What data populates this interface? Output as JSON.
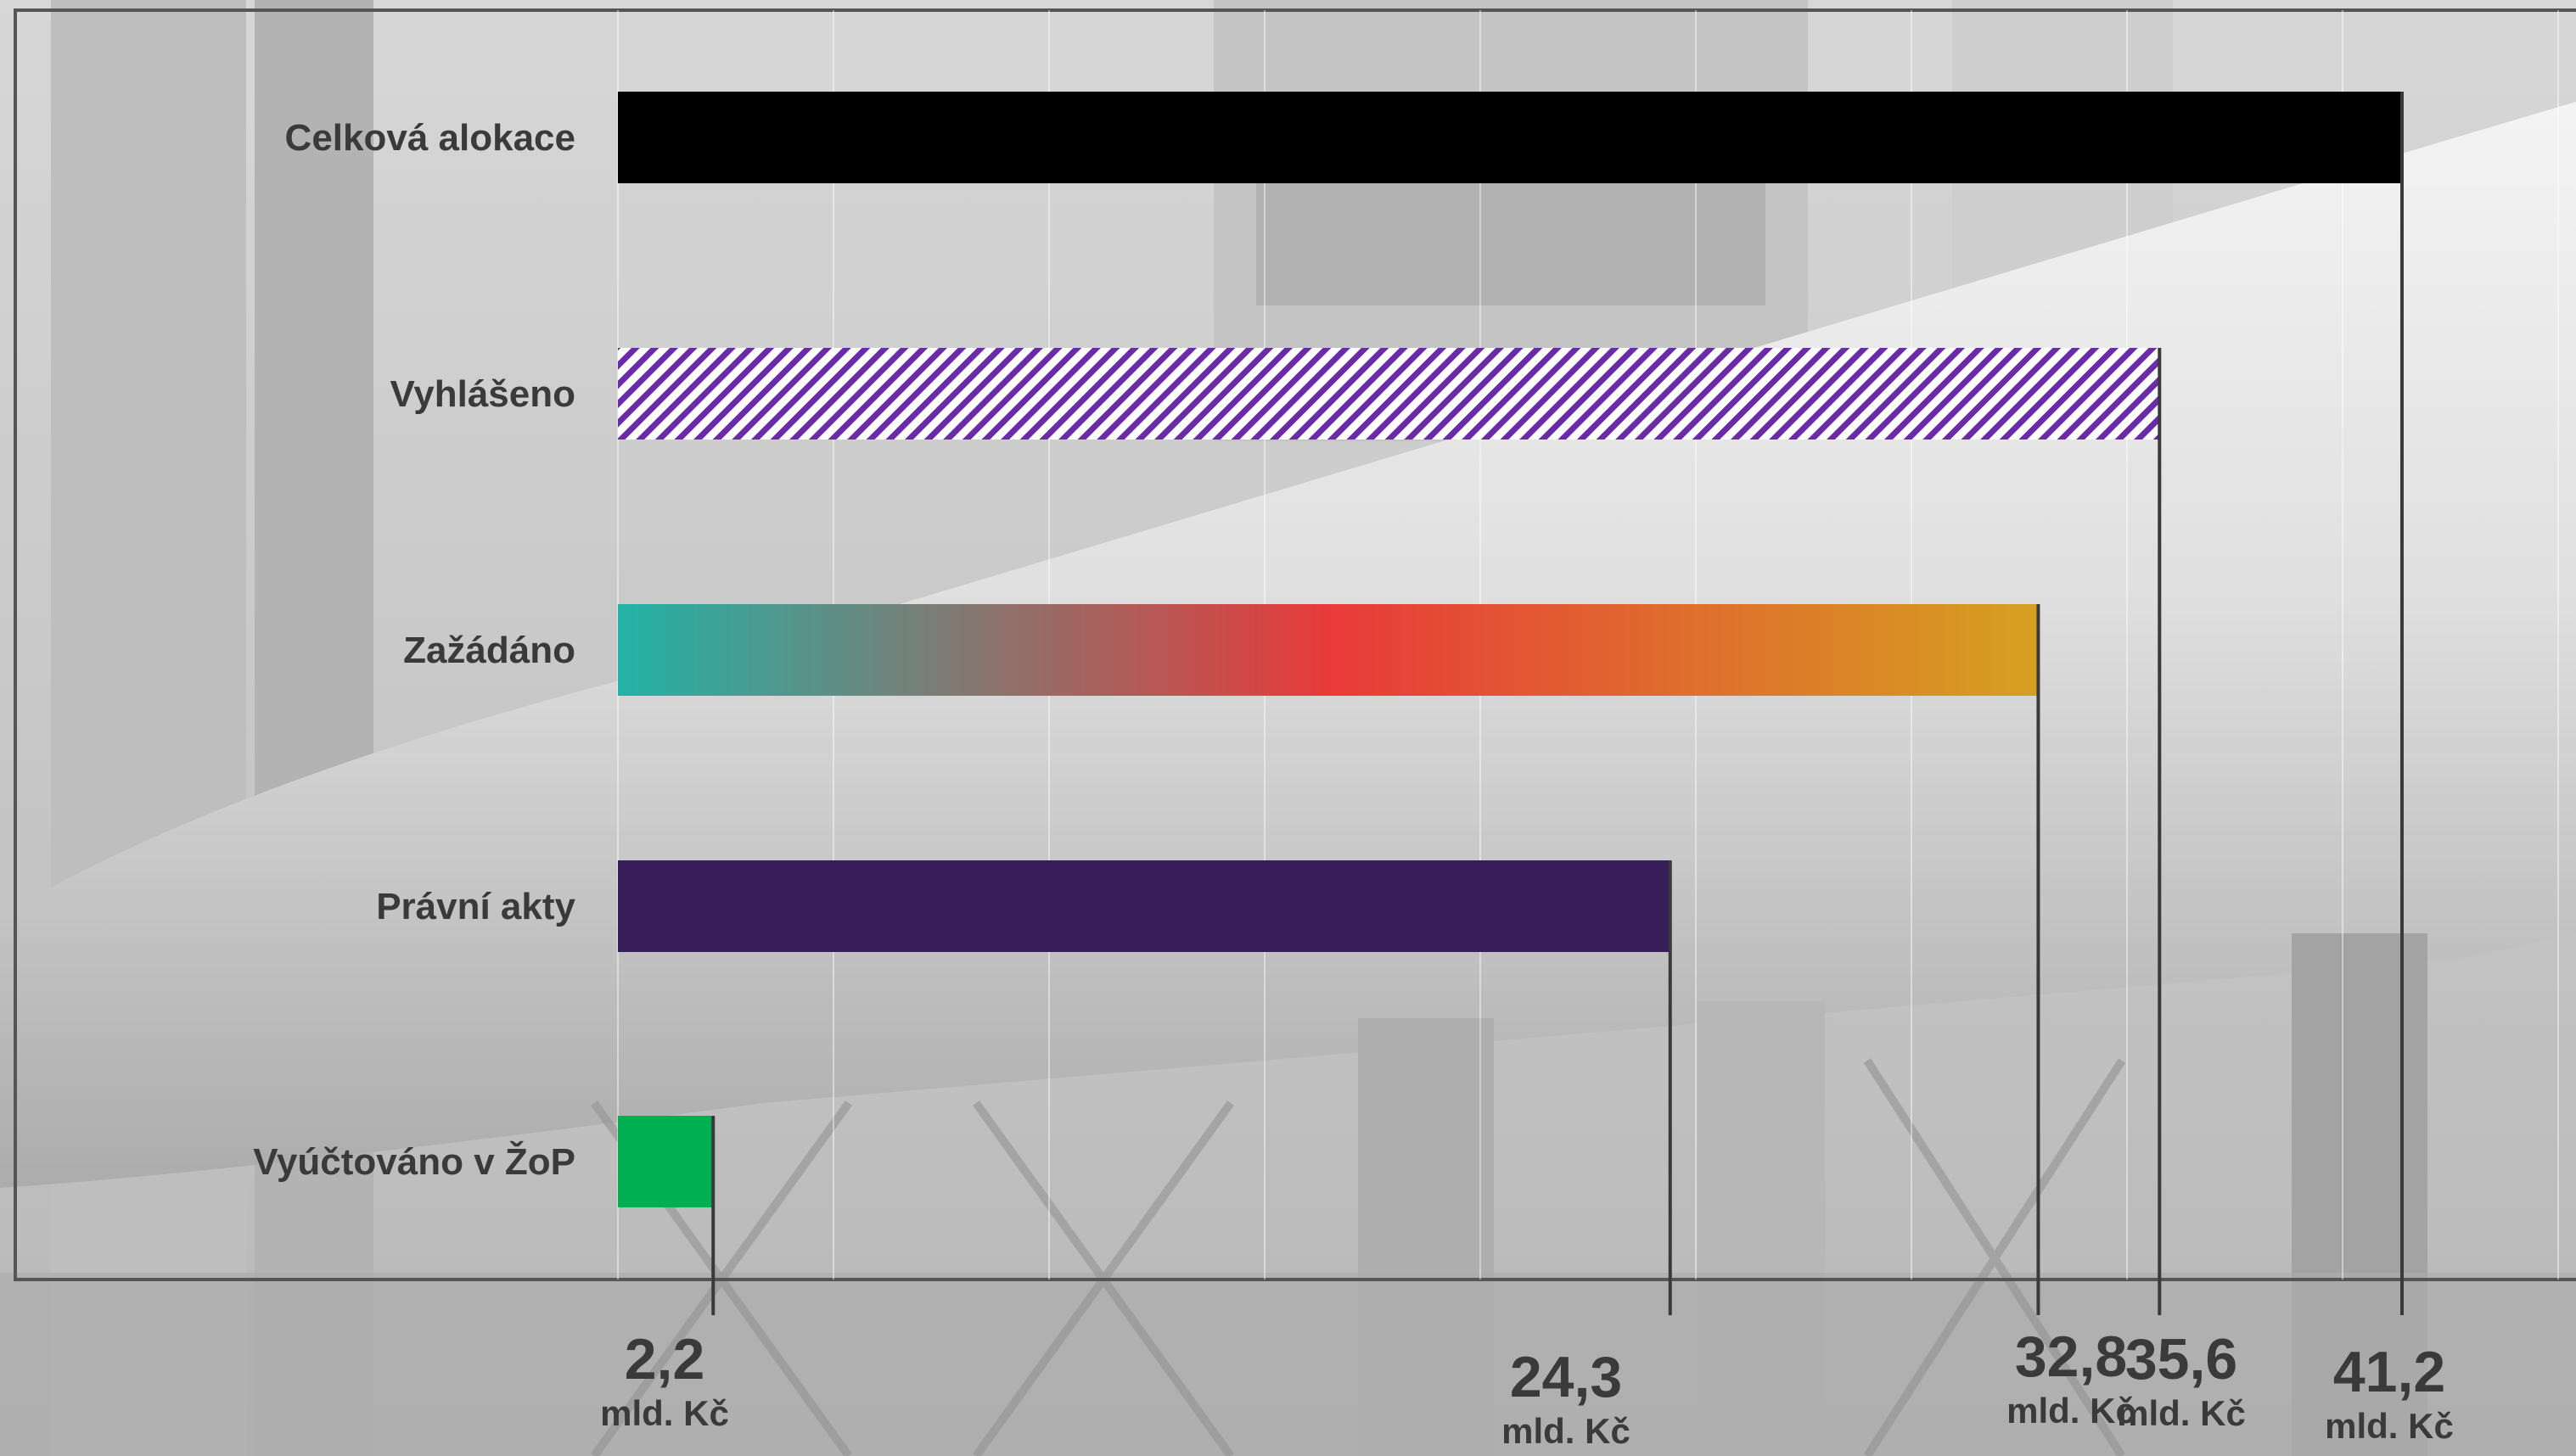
{
  "chart_data": {
    "type": "bar",
    "orientation": "horizontal",
    "categories": [
      "Celková alokace",
      "Vyhlášeno",
      "Zažádáno",
      "Právní akty",
      "Vyúčtováno v ŽoP"
    ],
    "values": [
      41.2,
      35.6,
      32.8,
      24.3,
      2.2
    ],
    "value_labels": [
      "41,2",
      "35,6",
      "32,8",
      "24,3",
      "2,2"
    ],
    "unit": "mld. Kč",
    "xlim": [
      0,
      41.2
    ],
    "grid": "vertical",
    "bar_styles": [
      "solid",
      "hatch",
      "gradient",
      "solid",
      "solid"
    ],
    "colors": {
      "Celková alokace": "#000000",
      "Vyhlášeno": "#6a2ba8",
      "Zažádáno": [
        "#22b3a6",
        "#e83a3a",
        "#d6a020"
      ],
      "Právní akty": "#371d5a",
      "Vyúčtováno v ŽoP": "#00b050"
    }
  }
}
